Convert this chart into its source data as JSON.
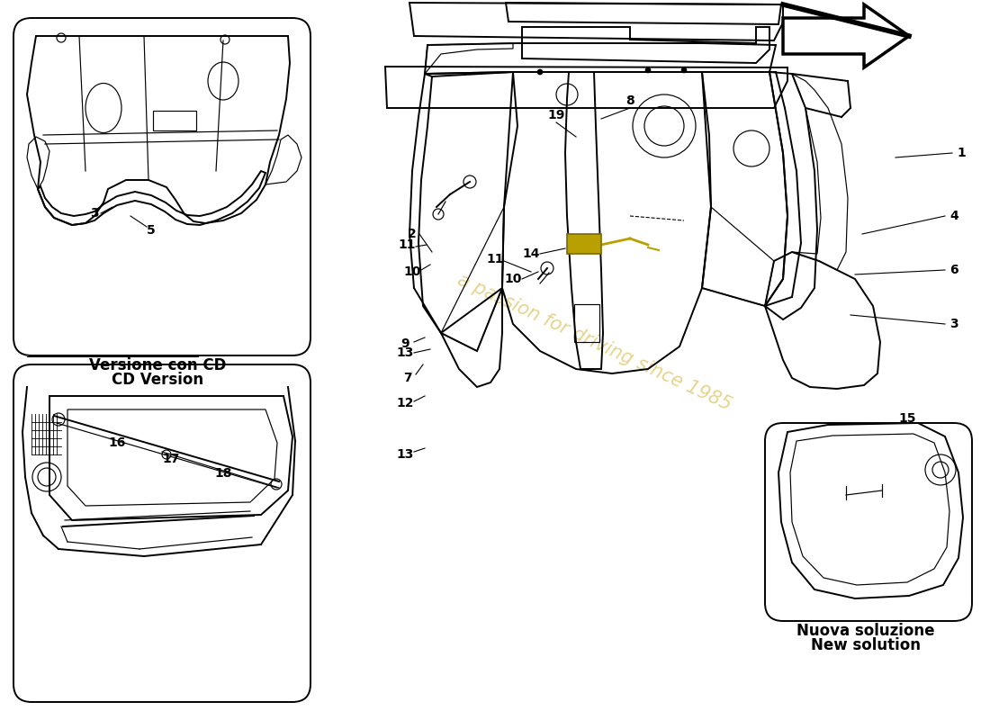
{
  "bg_color": "#ffffff",
  "watermark": "a passion for driving since 1985",
  "box1_caption_line1": "Versione con CD",
  "box1_caption_line2": "CD Version",
  "box2_caption_line1": "Nuova soluzione",
  "box2_caption_line2": "New solution",
  "lc": "#000000",
  "wc": "#b8a000"
}
